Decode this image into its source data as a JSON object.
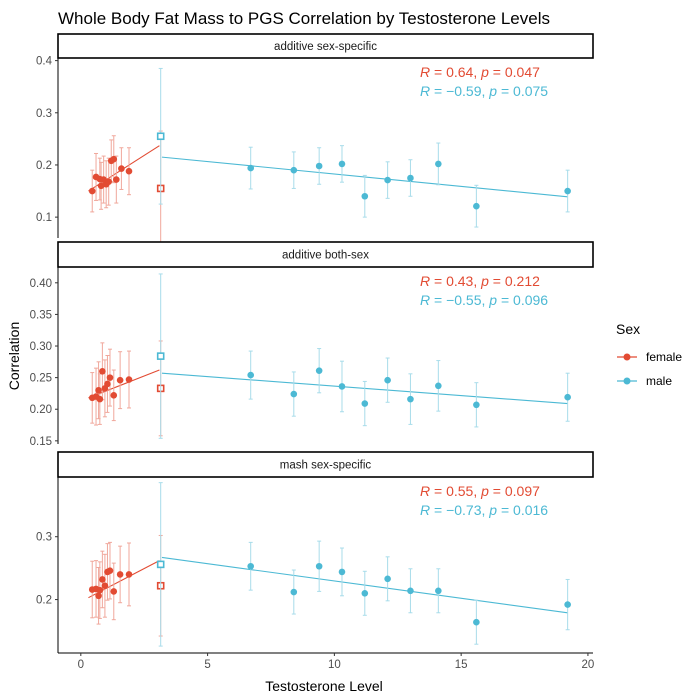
{
  "chart_data": {
    "type": "scatter",
    "title": "Whole Body Fat Mass to PGS Correlation by Testosterone Levels",
    "xlabel": "Testosterone Level",
    "ylabel": "Correlation",
    "xlim": [
      -0.9,
      20.2
    ],
    "x_ticks": [
      0,
      5,
      10,
      15,
      20
    ],
    "legend": {
      "title": "Sex",
      "position": "right",
      "entries": [
        {
          "name": "female",
          "color": "#E24B33"
        },
        {
          "name": "male",
          "color": "#4CB9D4"
        }
      ]
    },
    "colors": {
      "female": "#E24B33",
      "male": "#4CB9D4",
      "female_bar": "#F0A79B",
      "male_bar": "#A8DCEA"
    },
    "panels": [
      {
        "strip": "additive sex-specific",
        "ylim": [
          0.06,
          0.405
        ],
        "y_ticks": [
          0.1,
          0.2,
          0.3,
          0.4
        ],
        "y_tick_labels": [
          "0.1",
          "0.2",
          "0.3",
          "0.4"
        ],
        "annotations": [
          {
            "group": "female",
            "r": "0.64",
            "p": "0.047"
          },
          {
            "group": "male",
            "r": "−0.59",
            "p": "0.075"
          }
        ],
        "female": {
          "x": [
            0.45,
            0.6,
            0.75,
            0.8,
            0.9,
            1.0,
            1.1,
            1.2,
            1.3,
            1.4,
            1.6,
            1.9
          ],
          "y": [
            0.15,
            0.177,
            0.173,
            0.16,
            0.172,
            0.163,
            0.168,
            0.208,
            0.211,
            0.172,
            0.193,
            0.188
          ],
          "err": [
            0.04,
            0.045,
            0.04,
            0.045,
            0.045,
            0.045,
            0.045,
            0.04,
            0.045,
            0.045,
            0.04,
            0.045
          ],
          "fit": {
            "x": [
              0.3,
              3.1
            ],
            "y": [
              0.15,
              0.237
            ]
          },
          "open_point": {
            "x": 3.15,
            "y": 0.155,
            "err": 0.11
          }
        },
        "male": {
          "x": [
            6.7,
            8.4,
            9.4,
            10.3,
            11.2,
            12.1,
            13.0,
            14.1,
            15.6,
            19.2
          ],
          "y": [
            0.194,
            0.19,
            0.198,
            0.202,
            0.14,
            0.171,
            0.175,
            0.202,
            0.121,
            0.15
          ],
          "err": [
            0.04,
            0.035,
            0.035,
            0.035,
            0.04,
            0.035,
            0.035,
            0.04,
            0.04,
            0.04
          ],
          "fit": {
            "x": [
              3.2,
              19.2
            ],
            "y": [
              0.215,
              0.139
            ]
          },
          "open_point": {
            "x": 3.15,
            "y": 0.255,
            "err": 0.13
          }
        }
      },
      {
        "strip": "additive both-sex",
        "ylim": [
          0.145,
          0.425
        ],
        "y_ticks": [
          0.15,
          0.2,
          0.25,
          0.3,
          0.35,
          0.4
        ],
        "y_tick_labels": [
          "0.15",
          "0.20",
          "0.25",
          "0.30",
          "0.35",
          "0.40"
        ],
        "annotations": [
          {
            "group": "female",
            "r": "0.43",
            "p": "0.212"
          },
          {
            "group": "male",
            "r": "−0.55",
            "p": "0.096"
          }
        ],
        "female": {
          "x": [
            0.45,
            0.6,
            0.7,
            0.75,
            0.85,
            0.95,
            1.05,
            1.15,
            1.3,
            1.55,
            1.9
          ],
          "y": [
            0.218,
            0.22,
            0.23,
            0.216,
            0.26,
            0.233,
            0.24,
            0.25,
            0.222,
            0.246,
            0.247
          ],
          "err": [
            0.04,
            0.045,
            0.045,
            0.04,
            0.045,
            0.045,
            0.045,
            0.045,
            0.04,
            0.045,
            0.045
          ],
          "fit": {
            "x": [
              0.3,
              3.1
            ],
            "y": [
              0.218,
              0.262
            ]
          },
          "open_point": {
            "x": 3.15,
            "y": 0.233,
            "err": 0.075
          }
        },
        "male": {
          "x": [
            6.7,
            8.4,
            9.4,
            10.3,
            11.2,
            12.1,
            13.0,
            14.1,
            15.6,
            19.2
          ],
          "y": [
            0.254,
            0.224,
            0.261,
            0.236,
            0.209,
            0.246,
            0.216,
            0.237,
            0.207,
            0.219
          ],
          "err": [
            0.038,
            0.035,
            0.035,
            0.04,
            0.035,
            0.035,
            0.04,
            0.04,
            0.035,
            0.038
          ],
          "fit": {
            "x": [
              3.2,
              19.2
            ],
            "y": [
              0.257,
              0.209
            ]
          },
          "open_point": {
            "x": 3.15,
            "y": 0.284,
            "err": 0.13
          }
        }
      },
      {
        "strip": "mash sex-specific",
        "ylim": [
          0.115,
          0.395
        ],
        "y_ticks": [
          0.2,
          0.3
        ],
        "y_tick_labels": [
          "0.2",
          "0.3"
        ],
        "annotations": [
          {
            "group": "female",
            "r": "0.55",
            "p": "0.097"
          },
          {
            "group": "male",
            "r": "−0.73",
            "p": "0.016"
          }
        ],
        "female": {
          "x": [
            0.45,
            0.6,
            0.7,
            0.75,
            0.85,
            0.95,
            1.05,
            1.15,
            1.3,
            1.55,
            1.9
          ],
          "y": [
            0.216,
            0.217,
            0.206,
            0.215,
            0.232,
            0.222,
            0.244,
            0.246,
            0.213,
            0.24,
            0.24
          ],
          "err": [
            0.045,
            0.045,
            0.045,
            0.045,
            0.045,
            0.05,
            0.045,
            0.045,
            0.045,
            0.045,
            0.05
          ],
          "fit": {
            "x": [
              0.3,
              3.1
            ],
            "y": [
              0.203,
              0.262
            ]
          },
          "open_point": {
            "x": 3.15,
            "y": 0.222,
            "err": 0.08
          }
        },
        "male": {
          "x": [
            6.7,
            8.4,
            9.4,
            10.3,
            11.2,
            12.1,
            13.0,
            14.1,
            15.6,
            19.2
          ],
          "y": [
            0.253,
            0.212,
            0.253,
            0.244,
            0.21,
            0.233,
            0.214,
            0.214,
            0.164,
            0.192
          ],
          "err": [
            0.038,
            0.035,
            0.04,
            0.038,
            0.035,
            0.035,
            0.035,
            0.035,
            0.035,
            0.04
          ],
          "fit": {
            "x": [
              3.2,
              19.2
            ],
            "y": [
              0.267,
              0.179
            ]
          },
          "open_point": {
            "x": 3.15,
            "y": 0.256,
            "err": 0.13
          }
        }
      }
    ]
  }
}
